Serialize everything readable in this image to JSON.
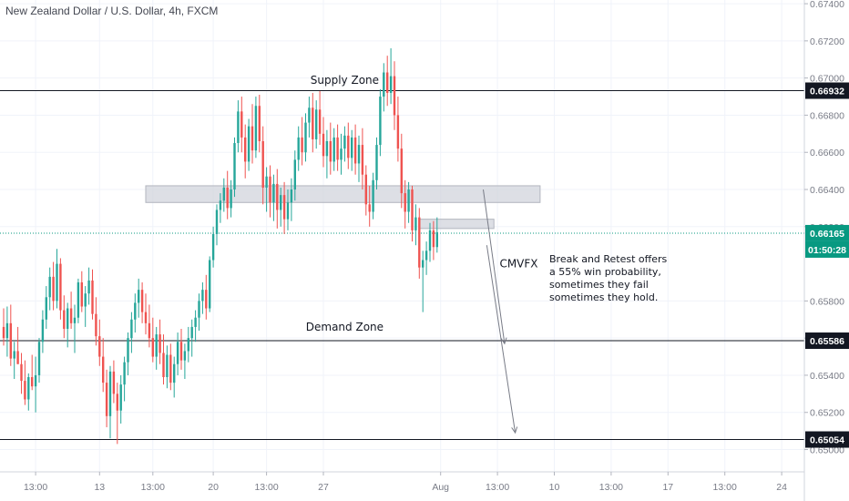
{
  "header": {
    "title": "New Zealand Dollar / U.S. Dollar, 4h, FXCM"
  },
  "colors": {
    "up": "#26a69a",
    "down": "#ef5350",
    "wick": "#5d606b",
    "grid": "#f0f3fa",
    "axis_text": "#787b86",
    "label_bg": "#131722",
    "current_price": "#089981",
    "hline": "#131722",
    "zone_fill": "#d1d4dc",
    "arrow": "#787b86"
  },
  "chart_data": {
    "type": "candlestick",
    "title": "New Zealand Dollar / U.S. Dollar, 4h, FXCM",
    "ylim": [
      0.6488,
      0.6742
    ],
    "y_ticks": [
      "0.67400",
      "0.67200",
      "0.67000",
      "0.66800",
      "0.66600",
      "0.66400",
      "0.66200",
      "0.65800",
      "0.65600",
      "0.65400",
      "0.65200",
      "0.65000"
    ],
    "y_tick_values": [
      0.674,
      0.672,
      0.67,
      0.668,
      0.666,
      0.664,
      0.662,
      0.658,
      0.656,
      0.654,
      0.652,
      0.65
    ],
    "x_ticks": [
      "13:00",
      "13",
      "13:00",
      "20",
      "13:00",
      "27",
      "Aug",
      "13:00",
      "10",
      "13:00",
      "17",
      "13:00",
      "24"
    ],
    "x_tick_index": [
      9,
      27,
      42,
      59,
      74,
      90,
      123,
      139,
      155,
      171,
      187,
      203,
      219
    ],
    "levels": [
      {
        "id": "supply",
        "price": 0.66932,
        "label": "0.66932"
      },
      {
        "id": "demand",
        "price": 0.65586,
        "label": "0.65586"
      },
      {
        "id": "target",
        "price": 0.65054,
        "label": "0.65054"
      }
    ],
    "current_price": {
      "price": 0.66165,
      "label": "0.66165",
      "countdown": "01:50:28"
    },
    "zones": [
      {
        "from_index": 40,
        "to_index": 151,
        "low": 0.6633,
        "high": 0.6642
      },
      {
        "from_index": 117,
        "to_index": 138,
        "low": 0.6619,
        "high": 0.6624
      }
    ],
    "annotations": [
      {
        "id": "supply-zone",
        "text": "Supply Zone",
        "index": 96,
        "price": 0.6697
      },
      {
        "id": "demand-zone",
        "text": "Demand Zone",
        "index": 96,
        "price": 0.6564
      },
      {
        "id": "cmvfx",
        "text": "CMVFX",
        "index": 145,
        "price": 0.6598
      }
    ],
    "note_lines": [
      "Break and Retest offers",
      "a 55% win probability,",
      "sometimes they fail",
      "sometimes they hold."
    ],
    "arrows": [
      {
        "from": {
          "index": 135,
          "price": 0.664
        },
        "to": {
          "index": 141,
          "price": 0.6557
        }
      },
      {
        "from": {
          "index": 136,
          "price": 0.661
        },
        "to": {
          "index": 144,
          "price": 0.6509
        }
      }
    ],
    "candles": [
      {
        "o": 0.6566,
        "h": 0.6576,
        "l": 0.6556,
        "c": 0.656
      },
      {
        "o": 0.656,
        "h": 0.6577,
        "l": 0.655,
        "c": 0.6568
      },
      {
        "o": 0.6568,
        "h": 0.6578,
        "l": 0.6545,
        "c": 0.6549
      },
      {
        "o": 0.6549,
        "h": 0.6558,
        "l": 0.6538,
        "c": 0.6553
      },
      {
        "o": 0.6553,
        "h": 0.6566,
        "l": 0.6546,
        "c": 0.6546
      },
      {
        "o": 0.6546,
        "h": 0.6552,
        "l": 0.653,
        "c": 0.6537
      },
      {
        "o": 0.6537,
        "h": 0.6548,
        "l": 0.6524,
        "c": 0.6527
      },
      {
        "o": 0.6527,
        "h": 0.6541,
        "l": 0.6521,
        "c": 0.6539
      },
      {
        "o": 0.6539,
        "h": 0.6551,
        "l": 0.6532,
        "c": 0.6534
      },
      {
        "o": 0.6534,
        "h": 0.655,
        "l": 0.652,
        "c": 0.654
      },
      {
        "o": 0.654,
        "h": 0.656,
        "l": 0.6536,
        "c": 0.6558
      },
      {
        "o": 0.6558,
        "h": 0.6575,
        "l": 0.6552,
        "c": 0.657
      },
      {
        "o": 0.657,
        "h": 0.6588,
        "l": 0.6565,
        "c": 0.6582
      },
      {
        "o": 0.6582,
        "h": 0.6598,
        "l": 0.6575,
        "c": 0.6593
      },
      {
        "o": 0.6593,
        "h": 0.6601,
        "l": 0.6575,
        "c": 0.658
      },
      {
        "o": 0.658,
        "h": 0.6608,
        "l": 0.6576,
        "c": 0.66
      },
      {
        "o": 0.66,
        "h": 0.6603,
        "l": 0.657,
        "c": 0.6575
      },
      {
        "o": 0.6575,
        "h": 0.6583,
        "l": 0.656,
        "c": 0.6565
      },
      {
        "o": 0.6565,
        "h": 0.6579,
        "l": 0.6555,
        "c": 0.6576
      },
      {
        "o": 0.6576,
        "h": 0.6585,
        "l": 0.6565,
        "c": 0.6568
      },
      {
        "o": 0.6568,
        "h": 0.6578,
        "l": 0.6552,
        "c": 0.6571
      },
      {
        "o": 0.6571,
        "h": 0.6592,
        "l": 0.6568,
        "c": 0.659
      },
      {
        "o": 0.659,
        "h": 0.6596,
        "l": 0.6574,
        "c": 0.6577
      },
      {
        "o": 0.6577,
        "h": 0.6588,
        "l": 0.6566,
        "c": 0.6584
      },
      {
        "o": 0.6584,
        "h": 0.6598,
        "l": 0.6578,
        "c": 0.6591
      },
      {
        "o": 0.6591,
        "h": 0.6597,
        "l": 0.657,
        "c": 0.6573
      },
      {
        "o": 0.6573,
        "h": 0.6582,
        "l": 0.6556,
        "c": 0.6561
      },
      {
        "o": 0.6561,
        "h": 0.657,
        "l": 0.6545,
        "c": 0.655
      },
      {
        "o": 0.655,
        "h": 0.656,
        "l": 0.6531,
        "c": 0.6536
      },
      {
        "o": 0.6536,
        "h": 0.6543,
        "l": 0.6512,
        "c": 0.6518
      },
      {
        "o": 0.6518,
        "h": 0.6545,
        "l": 0.6506,
        "c": 0.6542
      },
      {
        "o": 0.6542,
        "h": 0.6548,
        "l": 0.6525,
        "c": 0.653
      },
      {
        "o": 0.653,
        "h": 0.6536,
        "l": 0.6503,
        "c": 0.6521
      },
      {
        "o": 0.6521,
        "h": 0.654,
        "l": 0.6514,
        "c": 0.6535
      },
      {
        "o": 0.6535,
        "h": 0.655,
        "l": 0.6526,
        "c": 0.6547
      },
      {
        "o": 0.6547,
        "h": 0.6563,
        "l": 0.654,
        "c": 0.656
      },
      {
        "o": 0.656,
        "h": 0.6574,
        "l": 0.6552,
        "c": 0.657
      },
      {
        "o": 0.657,
        "h": 0.6584,
        "l": 0.6563,
        "c": 0.6579
      },
      {
        "o": 0.6579,
        "h": 0.6592,
        "l": 0.6571,
        "c": 0.6586
      },
      {
        "o": 0.6586,
        "h": 0.659,
        "l": 0.6568,
        "c": 0.6574
      },
      {
        "o": 0.6574,
        "h": 0.6584,
        "l": 0.6562,
        "c": 0.6568
      },
      {
        "o": 0.6568,
        "h": 0.6578,
        "l": 0.6555,
        "c": 0.656
      },
      {
        "o": 0.656,
        "h": 0.6571,
        "l": 0.6547,
        "c": 0.655
      },
      {
        "o": 0.655,
        "h": 0.6566,
        "l": 0.6543,
        "c": 0.6562
      },
      {
        "o": 0.6562,
        "h": 0.657,
        "l": 0.6546,
        "c": 0.6552
      },
      {
        "o": 0.6552,
        "h": 0.6562,
        "l": 0.6535,
        "c": 0.6539
      },
      {
        "o": 0.6539,
        "h": 0.6556,
        "l": 0.6533,
        "c": 0.6551
      },
      {
        "o": 0.6551,
        "h": 0.6557,
        "l": 0.6532,
        "c": 0.6536
      },
      {
        "o": 0.6536,
        "h": 0.655,
        "l": 0.6528,
        "c": 0.6546
      },
      {
        "o": 0.6546,
        "h": 0.6563,
        "l": 0.654,
        "c": 0.6558
      },
      {
        "o": 0.6558,
        "h": 0.6565,
        "l": 0.6543,
        "c": 0.6548
      },
      {
        "o": 0.6548,
        "h": 0.6557,
        "l": 0.6538,
        "c": 0.6553
      },
      {
        "o": 0.6553,
        "h": 0.6566,
        "l": 0.6547,
        "c": 0.656
      },
      {
        "o": 0.656,
        "h": 0.657,
        "l": 0.655,
        "c": 0.6566
      },
      {
        "o": 0.6566,
        "h": 0.6575,
        "l": 0.6558,
        "c": 0.6571
      },
      {
        "o": 0.6571,
        "h": 0.6584,
        "l": 0.6564,
        "c": 0.658
      },
      {
        "o": 0.658,
        "h": 0.659,
        "l": 0.6573,
        "c": 0.6586
      },
      {
        "o": 0.6586,
        "h": 0.6594,
        "l": 0.657,
        "c": 0.6576
      },
      {
        "o": 0.6576,
        "h": 0.6604,
        "l": 0.6574,
        "c": 0.6602
      },
      {
        "o": 0.6602,
        "h": 0.662,
        "l": 0.6598,
        "c": 0.6616
      },
      {
        "o": 0.6616,
        "h": 0.6632,
        "l": 0.661,
        "c": 0.6629
      },
      {
        "o": 0.6629,
        "h": 0.6638,
        "l": 0.6622,
        "c": 0.6634
      },
      {
        "o": 0.6634,
        "h": 0.6646,
        "l": 0.6628,
        "c": 0.6641
      },
      {
        "o": 0.6641,
        "h": 0.665,
        "l": 0.6624,
        "c": 0.663
      },
      {
        "o": 0.663,
        "h": 0.6645,
        "l": 0.6625,
        "c": 0.664
      },
      {
        "o": 0.664,
        "h": 0.6668,
        "l": 0.6636,
        "c": 0.6665
      },
      {
        "o": 0.6665,
        "h": 0.6688,
        "l": 0.666,
        "c": 0.6682
      },
      {
        "o": 0.6682,
        "h": 0.669,
        "l": 0.666,
        "c": 0.6668
      },
      {
        "o": 0.6668,
        "h": 0.6675,
        "l": 0.6646,
        "c": 0.6655
      },
      {
        "o": 0.6655,
        "h": 0.6678,
        "l": 0.665,
        "c": 0.6674
      },
      {
        "o": 0.6674,
        "h": 0.6686,
        "l": 0.6654,
        "c": 0.6661
      },
      {
        "o": 0.6661,
        "h": 0.669,
        "l": 0.6657,
        "c": 0.6685
      },
      {
        "o": 0.6685,
        "h": 0.6691,
        "l": 0.666,
        "c": 0.6666
      },
      {
        "o": 0.6666,
        "h": 0.6674,
        "l": 0.6632,
        "c": 0.6641
      },
      {
        "o": 0.6641,
        "h": 0.6652,
        "l": 0.6628,
        "c": 0.6647
      },
      {
        "o": 0.6647,
        "h": 0.6653,
        "l": 0.6625,
        "c": 0.6633
      },
      {
        "o": 0.6633,
        "h": 0.6648,
        "l": 0.6623,
        "c": 0.6643
      },
      {
        "o": 0.6643,
        "h": 0.6651,
        "l": 0.6619,
        "c": 0.6629
      },
      {
        "o": 0.6629,
        "h": 0.6641,
        "l": 0.662,
        "c": 0.6637
      },
      {
        "o": 0.6637,
        "h": 0.6644,
        "l": 0.6616,
        "c": 0.6624
      },
      {
        "o": 0.6624,
        "h": 0.664,
        "l": 0.6618,
        "c": 0.6633
      },
      {
        "o": 0.6633,
        "h": 0.6646,
        "l": 0.6623,
        "c": 0.664
      },
      {
        "o": 0.664,
        "h": 0.6661,
        "l": 0.6634,
        "c": 0.6656
      },
      {
        "o": 0.6656,
        "h": 0.6674,
        "l": 0.665,
        "c": 0.6668
      },
      {
        "o": 0.6668,
        "h": 0.6679,
        "l": 0.6653,
        "c": 0.666
      },
      {
        "o": 0.666,
        "h": 0.6681,
        "l": 0.6655,
        "c": 0.6676
      },
      {
        "o": 0.6676,
        "h": 0.669,
        "l": 0.6668,
        "c": 0.6684
      },
      {
        "o": 0.6684,
        "h": 0.6692,
        "l": 0.666,
        "c": 0.6667
      },
      {
        "o": 0.6667,
        "h": 0.6688,
        "l": 0.6662,
        "c": 0.6683
      },
      {
        "o": 0.6683,
        "h": 0.6693,
        "l": 0.6664,
        "c": 0.667
      },
      {
        "o": 0.667,
        "h": 0.6679,
        "l": 0.6652,
        "c": 0.6658
      },
      {
        "o": 0.6658,
        "h": 0.6672,
        "l": 0.6646,
        "c": 0.6666
      },
      {
        "o": 0.6666,
        "h": 0.6676,
        "l": 0.6648,
        "c": 0.6655
      },
      {
        "o": 0.6655,
        "h": 0.6673,
        "l": 0.665,
        "c": 0.6668
      },
      {
        "o": 0.6668,
        "h": 0.6675,
        "l": 0.665,
        "c": 0.6656
      },
      {
        "o": 0.6656,
        "h": 0.667,
        "l": 0.6648,
        "c": 0.6662
      },
      {
        "o": 0.6662,
        "h": 0.6674,
        "l": 0.6655,
        "c": 0.6669
      },
      {
        "o": 0.6669,
        "h": 0.6676,
        "l": 0.6651,
        "c": 0.6657
      },
      {
        "o": 0.6657,
        "h": 0.6672,
        "l": 0.665,
        "c": 0.6668
      },
      {
        "o": 0.6668,
        "h": 0.6675,
        "l": 0.6648,
        "c": 0.6654
      },
      {
        "o": 0.6654,
        "h": 0.6669,
        "l": 0.6644,
        "c": 0.6664
      },
      {
        "o": 0.6664,
        "h": 0.6673,
        "l": 0.664,
        "c": 0.6648
      },
      {
        "o": 0.6648,
        "h": 0.6653,
        "l": 0.6626,
        "c": 0.6632
      },
      {
        "o": 0.6632,
        "h": 0.6642,
        "l": 0.662,
        "c": 0.6628
      },
      {
        "o": 0.6628,
        "h": 0.6649,
        "l": 0.6624,
        "c": 0.6645
      },
      {
        "o": 0.6645,
        "h": 0.6668,
        "l": 0.664,
        "c": 0.6664
      },
      {
        "o": 0.6664,
        "h": 0.6694,
        "l": 0.6658,
        "c": 0.669
      },
      {
        "o": 0.669,
        "h": 0.6708,
        "l": 0.6682,
        "c": 0.6703
      },
      {
        "o": 0.6703,
        "h": 0.6712,
        "l": 0.6685,
        "c": 0.6692
      },
      {
        "o": 0.6692,
        "h": 0.6716,
        "l": 0.6686,
        "c": 0.6701
      },
      {
        "o": 0.6701,
        "h": 0.6709,
        "l": 0.6672,
        "c": 0.668
      },
      {
        "o": 0.668,
        "h": 0.669,
        "l": 0.6655,
        "c": 0.6662
      },
      {
        "o": 0.6662,
        "h": 0.667,
        "l": 0.663,
        "c": 0.6638
      },
      {
        "o": 0.6638,
        "h": 0.6645,
        "l": 0.6619,
        "c": 0.6628
      },
      {
        "o": 0.6628,
        "h": 0.6644,
        "l": 0.6622,
        "c": 0.664
      },
      {
        "o": 0.664,
        "h": 0.6642,
        "l": 0.6612,
        "c": 0.6618
      },
      {
        "o": 0.6618,
        "h": 0.6632,
        "l": 0.661,
        "c": 0.6625
      },
      {
        "o": 0.6625,
        "h": 0.663,
        "l": 0.6592,
        "c": 0.6598
      },
      {
        "o": 0.6598,
        "h": 0.6607,
        "l": 0.6574,
        "c": 0.6602
      },
      {
        "o": 0.6602,
        "h": 0.6612,
        "l": 0.6594,
        "c": 0.6607
      },
      {
        "o": 0.6607,
        "h": 0.6622,
        "l": 0.6601,
        "c": 0.6618
      },
      {
        "o": 0.6618,
        "h": 0.6623,
        "l": 0.6602,
        "c": 0.6609
      },
      {
        "o": 0.6609,
        "h": 0.6625,
        "l": 0.6606,
        "c": 0.6617
      }
    ]
  }
}
